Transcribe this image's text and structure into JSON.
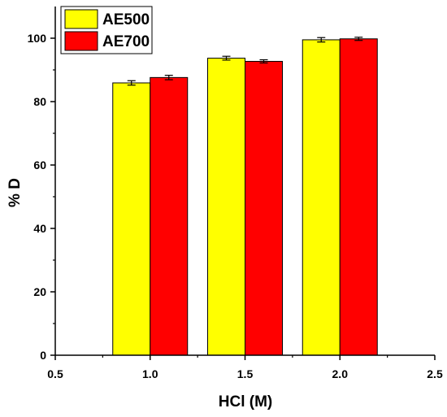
{
  "chart_data": {
    "type": "bar",
    "xlabel": "HCl (M)",
    "ylabel": "% D",
    "x": [
      1.0,
      1.5,
      2.0
    ],
    "xlim": [
      0.5,
      2.5
    ],
    "ylim": [
      0,
      110
    ],
    "xticks": [
      0.5,
      1.0,
      1.5,
      2.0,
      2.5
    ],
    "xtick_labels": [
      "0.5",
      "1.0",
      "1.5",
      "2.0",
      "2.5"
    ],
    "yticks": [
      0,
      20,
      40,
      60,
      80,
      100
    ],
    "ytick_labels": [
      "0",
      "20",
      "40",
      "60",
      "80",
      "100"
    ],
    "grid": false,
    "legend_position": "top-left",
    "series": [
      {
        "name": "AE500",
        "color": "#ffff00",
        "values": [
          85.9,
          93.7,
          99.5
        ],
        "errors": [
          0.7,
          0.6,
          0.7
        ]
      },
      {
        "name": "AE700",
        "color": "#ff0000",
        "values": [
          87.6,
          92.7,
          99.8
        ],
        "errors": [
          0.7,
          0.5,
          0.5
        ]
      }
    ]
  }
}
